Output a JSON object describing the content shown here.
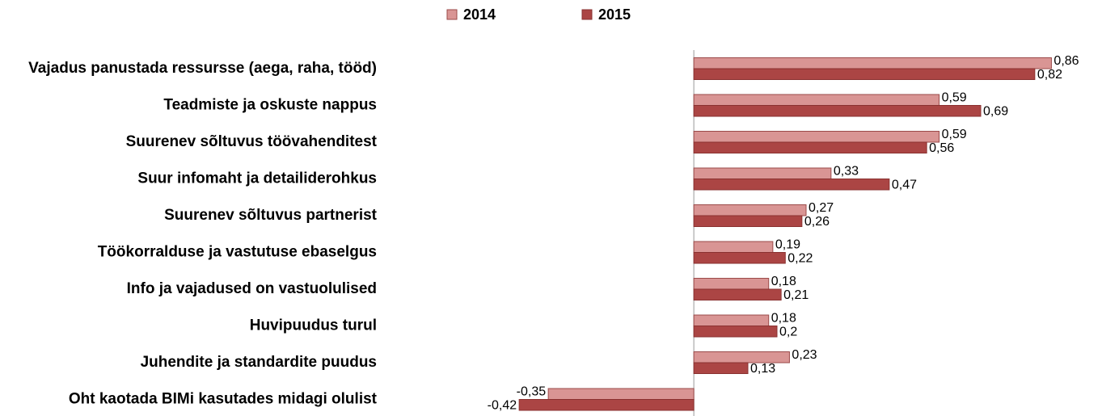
{
  "chart_data": {
    "type": "bar",
    "orientation": "horizontal",
    "categories": [
      "Vajadus panustada ressursse (aega, raha, tööd)",
      "Teadmiste ja oskuste nappus",
      "Suurenev sõltuvus töövahenditest",
      "Suur infomaht ja detailiderohkus",
      "Suurenev sõltuvus partnerist",
      "Töökorralduse ja vastutuse ebaselgus",
      "Info ja vajadused on vastuolulised",
      "Huvipuudus turul",
      "Juhendite ja standardite puudus",
      "Oht kaotada BIMi kasutades midagi olulist"
    ],
    "series": [
      {
        "name": "2014",
        "color": "#d99594",
        "stroke": "#9b4a49",
        "values": [
          0.86,
          0.59,
          0.59,
          0.33,
          0.27,
          0.19,
          0.18,
          0.18,
          0.23,
          -0.35
        ],
        "value_labels": [
          "0,86",
          "0,59",
          "0,59",
          "0,33",
          "0,27",
          "0,19",
          "0,18",
          "0,18",
          "0,23",
          "-0,35"
        ]
      },
      {
        "name": "2015",
        "color": "#ab4544",
        "stroke": "#8a3130",
        "values": [
          0.82,
          0.69,
          0.56,
          0.47,
          0.26,
          0.22,
          0.21,
          0.2,
          0.13,
          -0.42
        ],
        "value_labels": [
          "0,82",
          "0,69",
          "0,56",
          "0,47",
          "0,26",
          "0,22",
          "0,21",
          "0,2",
          "0,13",
          "-0,42"
        ]
      }
    ],
    "xlim": [
      -0.5,
      0.9
    ],
    "legend": "top"
  }
}
